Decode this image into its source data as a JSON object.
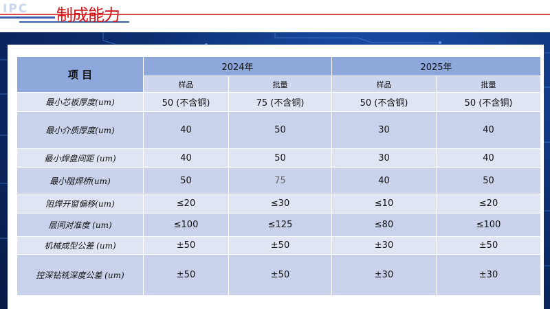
{
  "header": {
    "logo": "IPC",
    "title": "制成能力"
  },
  "table": {
    "corner_label": "项 目",
    "years": [
      "2024年",
      "2025年"
    ],
    "sub_headers": [
      "样品",
      "批量",
      "样品",
      "批量"
    ],
    "rows": [
      {
        "label": "最小芯板厚度(um)",
        "values": [
          "50 (不含铜)",
          "75 (不含铜)",
          "50 (不含铜)",
          "50 (不含铜)"
        ]
      },
      {
        "label": "最小介质厚度(um)",
        "values": [
          "40",
          "50",
          "30",
          "40"
        ]
      },
      {
        "label": "最小焊盘间距 (um)",
        "values": [
          "40",
          "50",
          "30",
          "40"
        ]
      },
      {
        "label": "最小阻焊桥(um)",
        "values": [
          "50",
          "75",
          "40",
          "50"
        ]
      },
      {
        "label": "阻焊开窗偏移(um)",
        "values": [
          "≤20",
          "≤30",
          "≤10",
          "≤20"
        ]
      },
      {
        "label": "层间对准度 (um)",
        "values": [
          "≤100",
          "≤125",
          "≤80",
          "≤100"
        ]
      },
      {
        "label": "机械成型公差 (um)",
        "values": [
          "±50",
          "±50",
          "±30",
          "±50"
        ]
      },
      {
        "label": "控深钻铣深度公差 (um)",
        "values": [
          "±50",
          "±50",
          "±30",
          "±30"
        ]
      }
    ]
  }
}
